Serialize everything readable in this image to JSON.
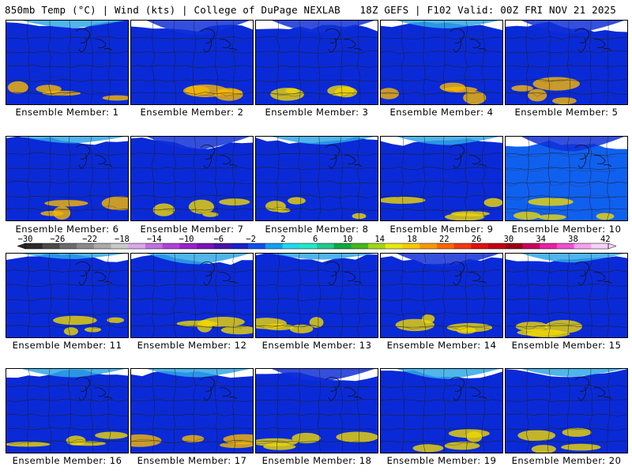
{
  "header": {
    "title": "850mb Temp (°C) | Wind (kts) | College of DuPage NEXLAB",
    "run_info": "18Z GEFS | F102 Valid: 00Z FRI NOV 21 2025"
  },
  "member_label_prefix": "Ensemble Member: ",
  "members": [
    {
      "id": 1,
      "label": "Ensemble Member: 1",
      "cold": 0.25,
      "warm": 0.55
    },
    {
      "id": 2,
      "label": "Ensemble Member: 2",
      "cold": 0.85,
      "warm": 0.6
    },
    {
      "id": 3,
      "label": "Ensemble Member: 3",
      "cold": 0.7,
      "warm": 0.35
    },
    {
      "id": 4,
      "label": "Ensemble Member: 4",
      "cold": 0.3,
      "warm": 0.55
    },
    {
      "id": 5,
      "label": "Ensemble Member: 5",
      "cold": 0.75,
      "warm": 0.65
    },
    {
      "id": 6,
      "label": "Ensemble Member: 6",
      "cold": 0.2,
      "warm": 0.55
    },
    {
      "id": 7,
      "label": "Ensemble Member: 7",
      "cold": 0.75,
      "warm": 0.45
    },
    {
      "id": 8,
      "label": "Ensemble Member: 8",
      "cold": 0.3,
      "warm": 0.4
    },
    {
      "id": 9,
      "label": "Ensemble Member: 9",
      "cold": 0.35,
      "warm": 0.5
    },
    {
      "id": 10,
      "label": "Ensemble Member: 10",
      "cold": 0.9,
      "warm": 0.3
    },
    {
      "id": 11,
      "label": "Ensemble Member: 11",
      "cold": 0.1,
      "warm": 0.45
    },
    {
      "id": 12,
      "label": "Ensemble Member: 12",
      "cold": 0.55,
      "warm": 0.35
    },
    {
      "id": 13,
      "label": "Ensemble Member: 13",
      "cold": 0.15,
      "warm": 0.4
    },
    {
      "id": 14,
      "label": "Ensemble Member: 14",
      "cold": 0.75,
      "warm": 0.5
    },
    {
      "id": 15,
      "label": "Ensemble Member: 15",
      "cold": 0.4,
      "warm": 0.45
    },
    {
      "id": 16,
      "label": "Ensemble Member: 16",
      "cold": 0.35,
      "warm": 0.5
    },
    {
      "id": 17,
      "label": "Ensemble Member: 17",
      "cold": 0.35,
      "warm": 0.55
    },
    {
      "id": 18,
      "label": "Ensemble Member: 18",
      "cold": 0.7,
      "warm": 0.45
    },
    {
      "id": 19,
      "label": "Ensemble Member: 19",
      "cold": 0.5,
      "warm": 0.5
    },
    {
      "id": 20,
      "label": "Ensemble Member: 20",
      "cold": 0.3,
      "warm": 0.5
    }
  ],
  "colorbar": {
    "tick_labels": [
      "-30",
      "-26",
      "-22",
      "-18",
      "-14",
      "-10",
      "-6",
      "-2",
      "2",
      "6",
      "10",
      "14",
      "18",
      "22",
      "26",
      "30",
      "34",
      "38",
      "42"
    ],
    "colors": [
      "#2a2a2a",
      "#4a4a4a",
      "#6a6a6a",
      "#8a8a8a",
      "#aaaaaa",
      "#c8c8c8",
      "#d8a8e8",
      "#c070e0",
      "#b040d8",
      "#9a20c8",
      "#7a10b8",
      "#4a10a8",
      "#1a20c8",
      "#1050e8",
      "#10a0f0",
      "#20d8f0",
      "#20e8c8",
      "#20c890",
      "#10a840",
      "#40b818",
      "#a0d810",
      "#e8e810",
      "#f8c800",
      "#f89800",
      "#f86800",
      "#f03810",
      "#e01010",
      "#c00010",
      "#980010",
      "#c80060",
      "#e820a0",
      "#f050d0",
      "#f8a0f0",
      "#f8d0f8"
    ],
    "unit_note": "°C"
  }
}
